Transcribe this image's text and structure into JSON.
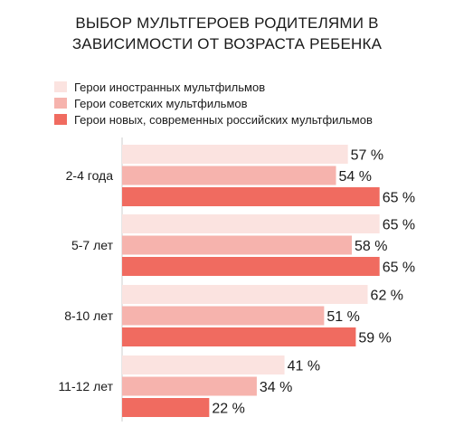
{
  "title_lines": [
    "ВЫБОР МУЛЬТГЕРОЕВ РОДИТЕЛЯМИ В",
    "ЗАВИСИМОСТИ ОТ ВОЗРАСТА РЕБЕНКА"
  ],
  "colors": {
    "foreign": "#fbe3e0",
    "soviet": "#f6b3ad",
    "modern": "#f06b60",
    "axis": "#cccccc"
  },
  "chart_data": {
    "type": "bar",
    "orientation": "horizontal",
    "title": "ВЫБОР МУЛЬТГЕРОЕВ РОДИТЕЛЯМИ В ЗАВИСИМОСТИ ОТ ВОЗРАСТА РЕБЕНКА",
    "categories": [
      "2-4 года",
      "5-7 лет",
      "8-10 лет",
      "11-12 лет"
    ],
    "series": [
      {
        "name": "Герои иностранных мультфильмов",
        "values": [
          57,
          65,
          62,
          41
        ],
        "labels": [
          "57 %",
          "65 %",
          "62 %",
          "41 %"
        ],
        "color": "#fbe3e0"
      },
      {
        "name": "Герои советских мультфильмов",
        "values": [
          54,
          58,
          51,
          34
        ],
        "labels": [
          "54 %",
          "58 %",
          "51 %",
          "34 %"
        ],
        "color": "#f6b3ad"
      },
      {
        "name": "Герои новых, современных российских мультфильмов",
        "values": [
          65,
          65,
          59,
          22
        ],
        "labels": [
          "65 %",
          "65 %",
          "59 %",
          "22 %"
        ],
        "color": "#f06b60"
      }
    ],
    "unit": "%",
    "xlim": [
      0,
      100
    ],
    "grid": false,
    "legend_position": "top-left"
  }
}
